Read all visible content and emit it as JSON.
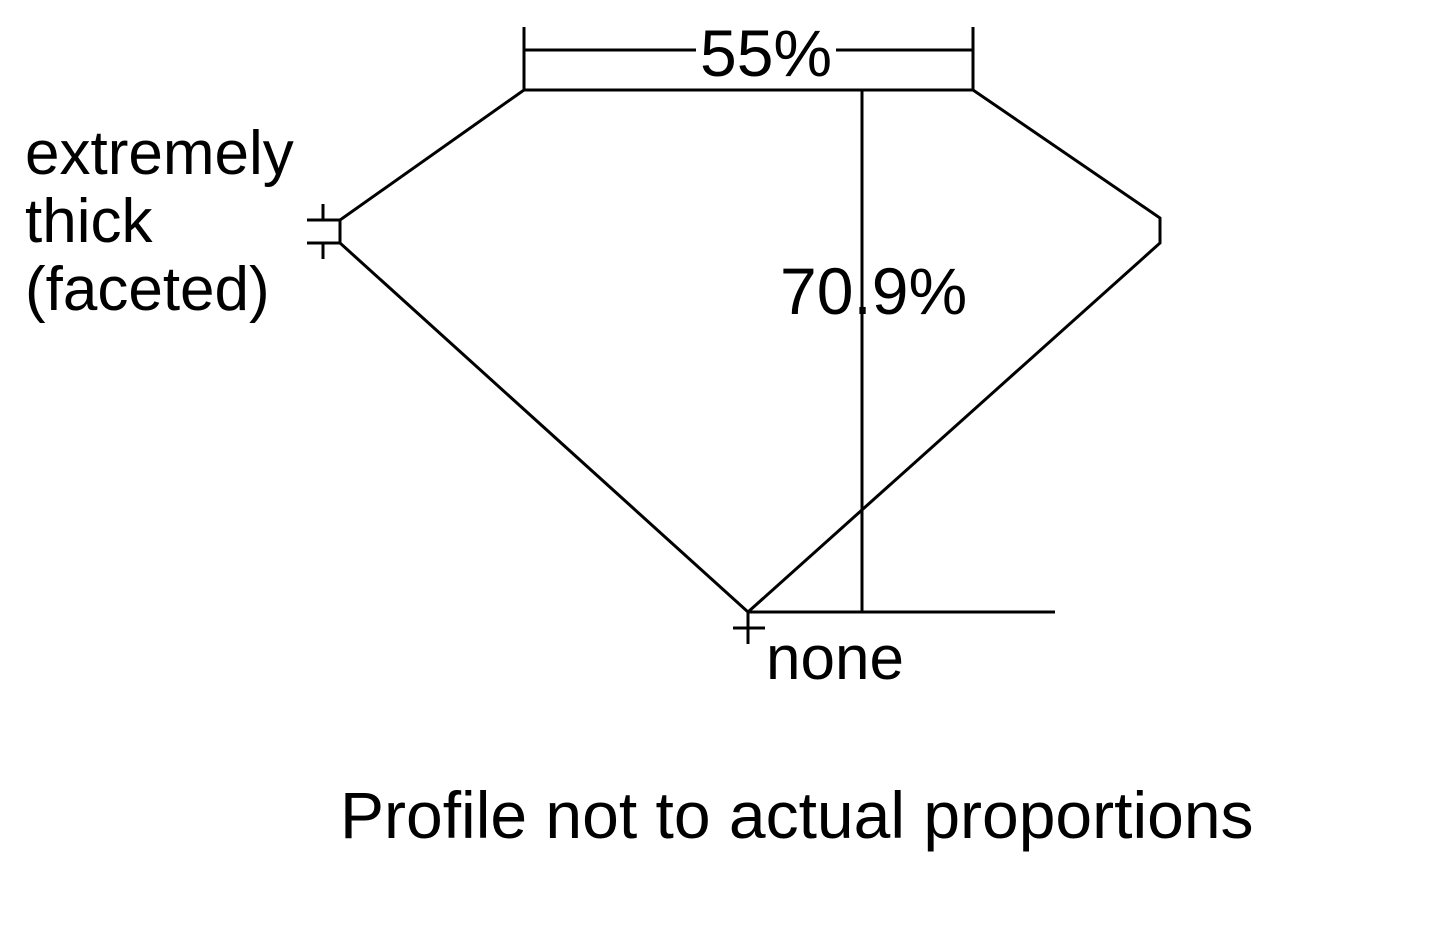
{
  "diagram": {
    "table_percent": "55%",
    "total_depth_percent": "70.9%",
    "girdle_label": "extremely\nthick\n(faceted)",
    "culet_label": "none",
    "note": "Profile not to actual proportions",
    "line_color": "#000000"
  }
}
